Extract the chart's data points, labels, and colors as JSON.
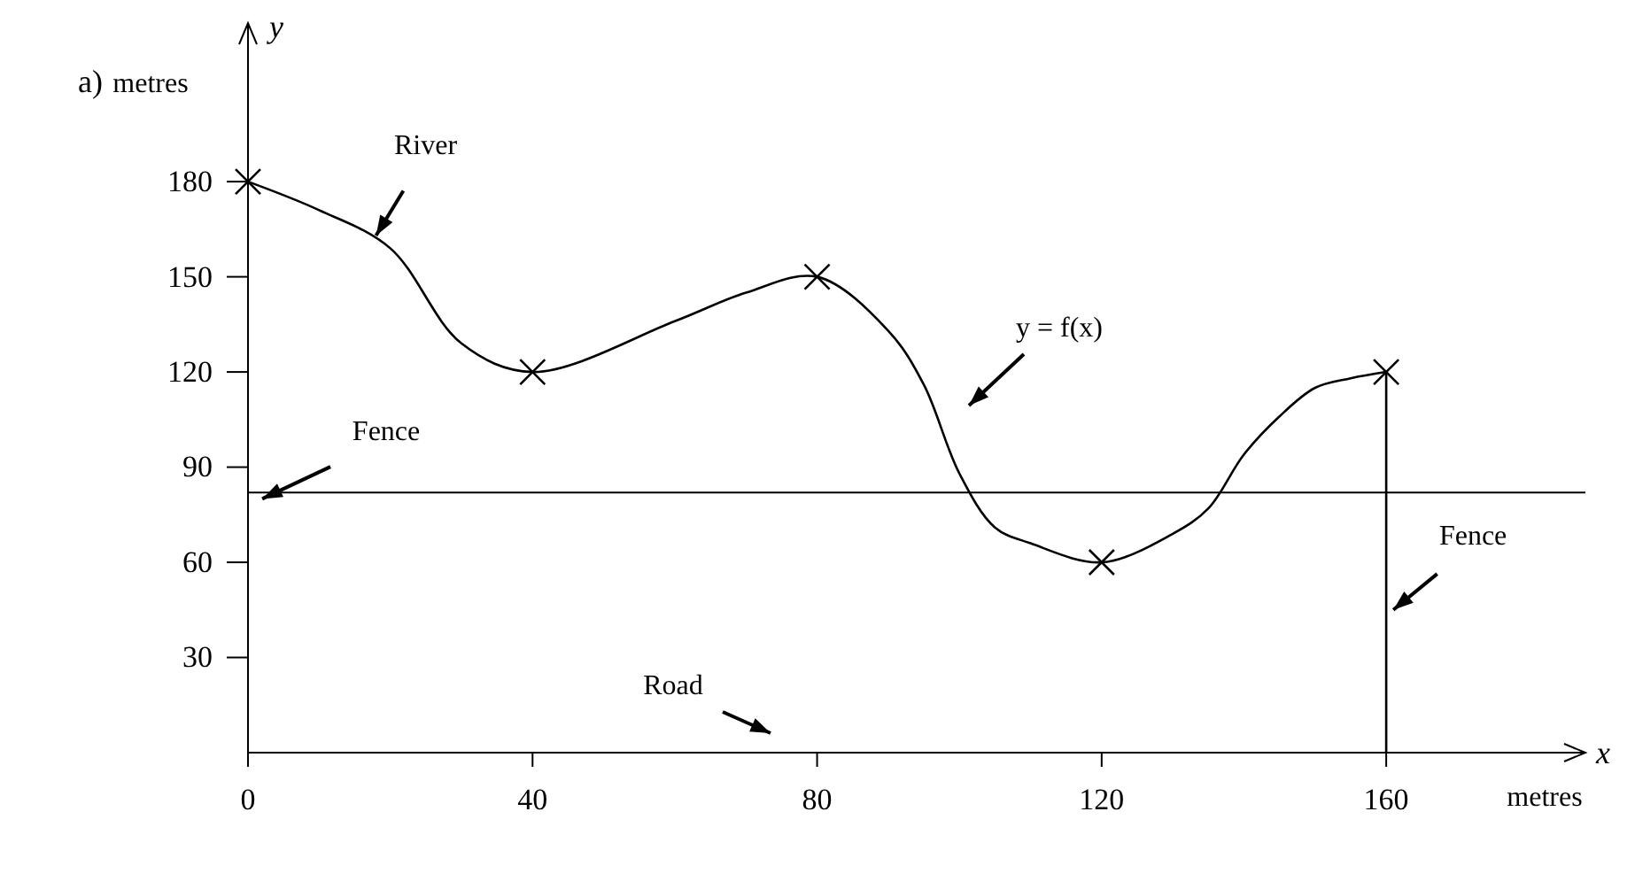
{
  "chart_data": {
    "type": "line",
    "xlabel": "metres",
    "ylabel": "metres",
    "xlim": [
      0,
      188
    ],
    "ylim": [
      0,
      230
    ],
    "xticks": [
      0,
      40,
      80,
      120,
      160
    ],
    "yticks": [
      30,
      60,
      90,
      120,
      150,
      180
    ],
    "series": [
      {
        "type": "line",
        "color": "#000000",
        "marker": "none",
        "x": [
          0,
          10,
          20,
          30,
          40,
          60,
          70,
          80,
          90,
          95,
          100,
          105,
          110,
          120,
          130,
          135,
          140,
          145,
          150,
          155,
          160
        ],
        "values": [
          180,
          171,
          159,
          129,
          120,
          136,
          145,
          150,
          133,
          116,
          88,
          71,
          66,
          60,
          69,
          77,
          94,
          106,
          115,
          118,
          120
        ]
      },
      {
        "type": "scatter",
        "color": "#000000",
        "marker": "cross",
        "x": [
          0,
          40,
          80,
          120,
          160
        ],
        "values": [
          180,
          120,
          150,
          60,
          120
        ]
      },
      {
        "type": "line",
        "color": "#000000",
        "marker": "none",
        "x": [
          160,
          160
        ],
        "values": [
          0,
          120
        ]
      }
    ],
    "ref_lines": [
      {
        "axis": "y",
        "value": 82,
        "color": "#000000"
      }
    ],
    "annotations": [
      {
        "text": "River",
        "x": 18,
        "y": 163
      },
      "y = f(x)",
      {
        "text": "Fence",
        "x": 2,
        "y": 80
      },
      {
        "text": "Fence",
        "x": 161,
        "y": 45
      },
      "Road",
      "a)",
      "y",
      "x"
    ],
    "grid": false
  }
}
